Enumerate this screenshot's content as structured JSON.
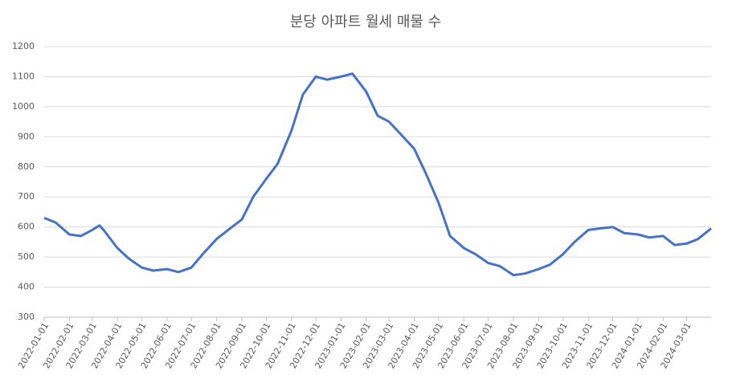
{
  "chart_data": {
    "type": "line",
    "title": "분당 아파트 월세 매물 수",
    "x": [
      "2022-01-01",
      "2022-01-15",
      "2022-02-01",
      "2022-02-15",
      "2022-03-01",
      "2022-03-10",
      "2022-03-15",
      "2022-04-01",
      "2022-04-15",
      "2022-05-01",
      "2022-05-15",
      "2022-06-01",
      "2022-06-15",
      "2022-07-01",
      "2022-07-15",
      "2022-08-01",
      "2022-08-15",
      "2022-09-01",
      "2022-09-15",
      "2022-10-01",
      "2022-10-15",
      "2022-11-01",
      "2022-11-15",
      "2022-12-01",
      "2022-12-15",
      "2023-01-01",
      "2023-01-15",
      "2023-02-01",
      "2023-02-15",
      "2023-03-01",
      "2023-03-15",
      "2023-04-01",
      "2023-04-15",
      "2023-05-01",
      "2023-05-15",
      "2023-06-01",
      "2023-06-15",
      "2023-07-01",
      "2023-07-15",
      "2023-08-01",
      "2023-08-15",
      "2023-09-01",
      "2023-09-15",
      "2023-10-01",
      "2023-10-15",
      "2023-11-01",
      "2023-11-15",
      "2023-12-01",
      "2023-12-15",
      "2024-01-01",
      "2024-01-15",
      "2024-02-01",
      "2024-02-15",
      "2024-03-01",
      "2024-03-15",
      "2024-03-31"
    ],
    "series": [
      {
        "color": "#4472c4",
        "values": [
          630,
          615,
          575,
          570,
          590,
          605,
          590,
          530,
          495,
          465,
          455,
          460,
          450,
          465,
          510,
          560,
          590,
          625,
          700,
          760,
          810,
          920,
          1040,
          1100,
          1090,
          1100,
          1110,
          1050,
          970,
          950,
          910,
          860,
          780,
          680,
          570,
          530,
          510,
          480,
          470,
          440,
          445,
          460,
          475,
          510,
          550,
          590,
          595,
          600,
          580,
          575,
          565,
          570,
          540,
          545,
          560,
          595
        ]
      }
    ],
    "xlim": [
      "2022-01-01",
      "2024-03-31"
    ],
    "xticks": [
      "2022-01-01",
      "2022-02-01",
      "2022-03-01",
      "2022-04-01",
      "2022-05-01",
      "2022-06-01",
      "2022-07-01",
      "2022-08-01",
      "2022-09-01",
      "2022-10-01",
      "2022-11-01",
      "2022-12-01",
      "2023-01-01",
      "2023-02-01",
      "2023-03-01",
      "2023-04-01",
      "2023-05-01",
      "2023-06-01",
      "2023-07-01",
      "2023-08-01",
      "2023-09-01",
      "2023-10-01",
      "2023-11-01",
      "2023-12-01",
      "2024-01-01",
      "2024-02-01",
      "2024-03-01"
    ],
    "ylim": [
      300,
      1200
    ],
    "yticks": [
      300,
      400,
      500,
      600,
      700,
      800,
      900,
      1000,
      1100,
      1200
    ],
    "grid": true
  }
}
